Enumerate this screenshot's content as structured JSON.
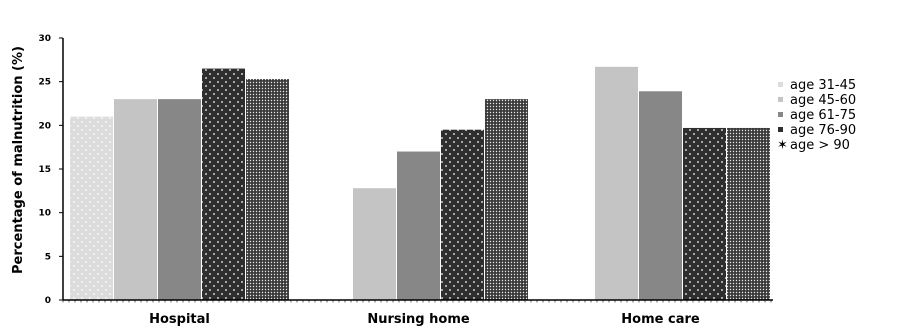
{
  "chart_data": {
    "type": "bar",
    "ylabel": "Percentage of malnutrition (%)",
    "xlabel": "",
    "ylim": [
      0,
      30
    ],
    "yticks": [
      0,
      5,
      10,
      15,
      20,
      25,
      30
    ],
    "grid": false,
    "legend_position": "right",
    "categories": [
      "Hospital",
      "Nursing home",
      "Home care"
    ],
    "series": [
      {
        "name": "age 31-45",
        "color": "#dcdcdc",
        "pattern": "sparse-dots",
        "values": [
          21.0,
          null,
          null
        ]
      },
      {
        "name": "age 45-60",
        "color": "#c4c4c4",
        "pattern": "solid",
        "values": [
          23.0,
          12.8,
          26.7
        ]
      },
      {
        "name": "age 61-75",
        "color": "#878787",
        "pattern": "solid",
        "values": [
          23.0,
          17.0,
          23.9
        ]
      },
      {
        "name": "age 76-90",
        "color": "#2e2e2e",
        "pattern": "white-dots",
        "values": [
          26.5,
          19.5,
          19.7
        ]
      },
      {
        "name": "age > 90",
        "color": "#4a4a4a",
        "pattern": "dense-dots",
        "values": [
          25.3,
          23.0,
          19.7
        ]
      }
    ]
  }
}
